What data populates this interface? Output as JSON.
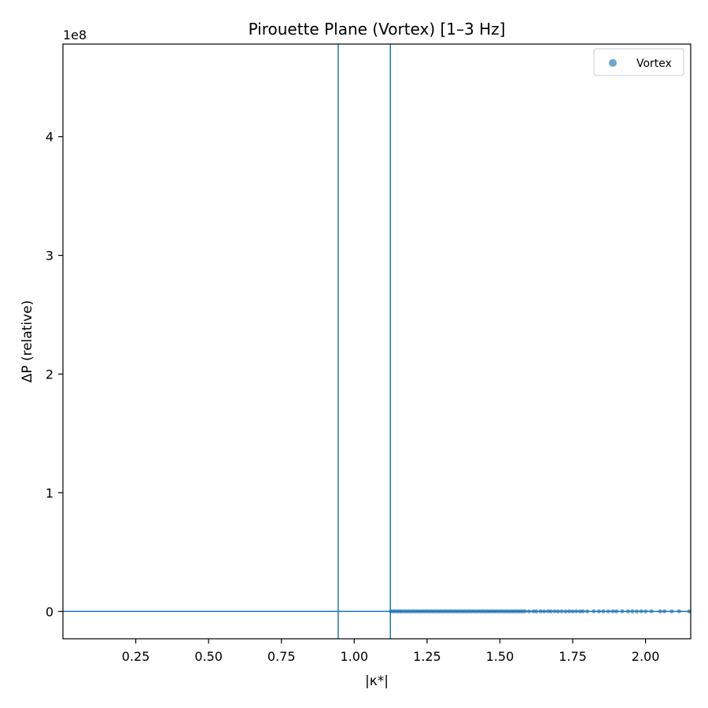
{
  "chart_data": {
    "type": "scatter",
    "title": "Pirouette Plane (Vortex)  [1–3 Hz]",
    "xlabel": "|κ*|",
    "ylabel": "ΔP (relative)",
    "y_offset_label": "1e8",
    "xlim": [
      0.0,
      2.155
    ],
    "ylim": [
      -0.23,
      4.78
    ],
    "y_unit_multiplier": 100000000,
    "x_ticks": [
      0.25,
      0.5,
      0.75,
      1.0,
      1.25,
      1.5,
      1.75,
      2.0
    ],
    "x_tick_labels": [
      "0.25",
      "0.50",
      "0.75",
      "1.00",
      "1.25",
      "1.50",
      "1.75",
      "2.00"
    ],
    "y_ticks": [
      0,
      1,
      2,
      3,
      4
    ],
    "y_tick_labels": [
      "0",
      "1",
      "2",
      "3",
      "4"
    ],
    "grid": false,
    "legend_position": "top-right",
    "reference_lines": {
      "vertical_x": [
        0.945,
        1.124
      ],
      "horizontal_y": [
        0
      ]
    },
    "series": [
      {
        "name": "Vortex",
        "color": "#1f77b4",
        "x": [
          1.126,
          1.133,
          1.14,
          1.148,
          1.155,
          1.162,
          1.17,
          1.178,
          1.186,
          1.194,
          1.202,
          1.21,
          1.218,
          1.226,
          1.234,
          1.242,
          1.25,
          1.258,
          1.266,
          1.274,
          1.282,
          1.29,
          1.298,
          1.306,
          1.314,
          1.322,
          1.33,
          1.338,
          1.346,
          1.354,
          1.362,
          1.37,
          1.378,
          1.386,
          1.394,
          1.402,
          1.41,
          1.418,
          1.426,
          1.434,
          1.442,
          1.45,
          1.458,
          1.466,
          1.474,
          1.482,
          1.49,
          1.498,
          1.506,
          1.514,
          1.522,
          1.53,
          1.538,
          1.546,
          1.554,
          1.562,
          1.57,
          1.578,
          1.586,
          1.6,
          1.615,
          1.625,
          1.64,
          1.652,
          1.665,
          1.675,
          1.688,
          1.7,
          1.712,
          1.725,
          1.738,
          1.75,
          1.762,
          1.775,
          1.785,
          1.8,
          1.822,
          1.84,
          1.855,
          1.872,
          1.888,
          1.9,
          1.92,
          1.94,
          1.955,
          1.97,
          1.985,
          2.0,
          2.02,
          2.05,
          2.065,
          2.09,
          2.115,
          2.15
        ],
        "y": [
          0.002,
          0.001,
          0.002,
          0.001,
          0.002,
          0.001,
          0.002,
          0.001,
          0.002,
          0.001,
          0.002,
          0.001,
          0.002,
          0.001,
          0.002,
          0.001,
          0.002,
          0.001,
          0.002,
          0.001,
          0.002,
          0.001,
          0.002,
          0.001,
          0.002,
          0.001,
          0.002,
          0.001,
          0.002,
          0.001,
          0.002,
          0.001,
          0.002,
          0.001,
          0.002,
          0.001,
          0.002,
          0.001,
          0.002,
          0.001,
          0.002,
          0.001,
          0.002,
          0.001,
          0.002,
          0.001,
          0.002,
          0.001,
          0.002,
          0.001,
          0.002,
          0.001,
          0.002,
          0.001,
          0.002,
          0.001,
          0.002,
          0.001,
          0.002,
          0.001,
          0.002,
          0.001,
          0.002,
          0.001,
          0.002,
          0.001,
          0.002,
          0.001,
          0.002,
          0.001,
          0.002,
          0.001,
          0.002,
          0.001,
          0.002,
          0.001,
          0.002,
          0.001,
          0.002,
          0.001,
          0.002,
          0.001,
          0.002,
          0.001,
          0.002,
          0.001,
          0.002,
          0.001,
          0.002,
          0.001,
          0.002,
          0.001,
          0.002,
          0.001
        ]
      }
    ]
  }
}
